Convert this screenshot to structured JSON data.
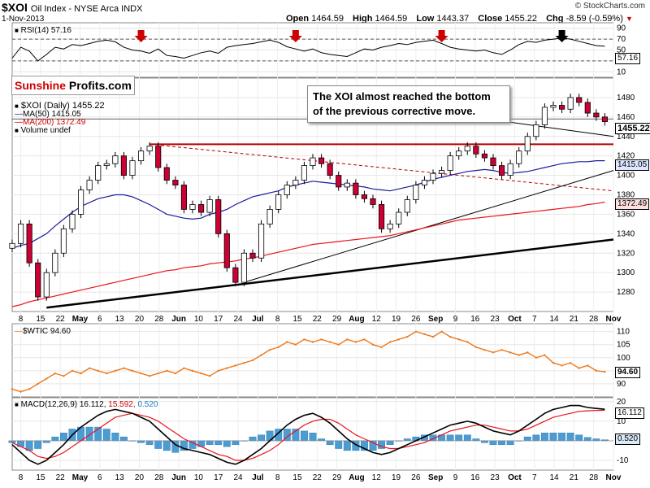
{
  "header": {
    "symbol": "$XOI",
    "name": "Oil Index - NYSE Arca INDX",
    "date": "1-Nov-2013",
    "brand": "© StockCharts.com"
  },
  "quote": {
    "open_label": "Open",
    "open": "1464.59",
    "high_label": "High",
    "high": "1464.59",
    "low_label": "Low",
    "low": "1443.37",
    "close_label": "Close",
    "close": "1455.22",
    "chg_label": "Chg",
    "chg": "-8.59 (-0.59%)"
  },
  "logo": {
    "part1": "Sunshine",
    "part2": "Profits.com"
  },
  "annotation": {
    "line1": "The XOI almost reached the bottom",
    "line2": "of the previous corrective move."
  },
  "legends": {
    "rsi": "RSI(14) 57.16",
    "price": "$XOI (Daily) 1455.22",
    "ma50": "MA(50) 1415.05",
    "ma200": "MA(200) 1372.49",
    "volume": "Volume undef",
    "wtic": "$WTIC 94.60",
    "macd_a": "MACD(12,26,9) 16.112,",
    "macd_b": "15.592,",
    "macd_c": "0.520"
  },
  "tags": {
    "rsi": "57.16",
    "price": "1455.22",
    "ma50": "1415.05",
    "ma200": "1372.49",
    "wtic": "94.60",
    "macd": "16.112",
    "hist": "0.520"
  },
  "colors": {
    "up": "#ffffff",
    "down": "#cc0033",
    "ma50": "#1c1c9e",
    "ma200": "#e8141e",
    "wtic": "#ee7a1e",
    "macd": "#000000",
    "signal": "#e8141e",
    "hist": "#4b9cd3",
    "resistance": "#b40000",
    "arrow_red": "#cc0000",
    "arrow_black": "#000000"
  },
  "x_axis": {
    "labels": [
      "8",
      "15",
      "22",
      "May",
      "6",
      "13",
      "20",
      "28",
      "Jun",
      "10",
      "17",
      "24",
      "Jul",
      "8",
      "15",
      "22",
      "29",
      "Aug",
      "12",
      "19",
      "26",
      "Sep",
      "9",
      "16",
      "23",
      "Oct",
      "7",
      "14",
      "21",
      "28",
      "Nov"
    ],
    "bold": [
      "May",
      "Jun",
      "Jul",
      "Aug",
      "Sep",
      "Oct",
      "Nov"
    ]
  },
  "chart_data": [
    {
      "type": "line",
      "title": "RSI(14)",
      "yticks": [
        10,
        30,
        50,
        70,
        90
      ],
      "ylim": [
        0,
        100
      ],
      "reference_lines": [
        30,
        70
      ],
      "x": [
        0,
        2,
        4,
        6,
        8,
        10,
        12,
        14,
        16,
        18,
        20,
        22,
        24,
        26,
        28,
        30,
        32,
        34,
        36,
        38,
        40,
        42,
        44,
        46,
        48,
        50,
        52,
        54,
        56,
        58,
        60,
        62,
        64,
        66,
        68,
        70,
        72,
        74,
        76,
        78,
        80,
        82,
        84,
        86,
        88,
        90,
        92,
        94,
        96,
        98,
        100,
        102,
        104,
        106,
        108,
        110,
        112,
        114,
        116,
        118,
        120,
        122,
        124,
        126,
        128,
        130,
        132,
        134,
        136,
        138
      ],
      "values": [
        35,
        55,
        48,
        30,
        42,
        55,
        52,
        60,
        58,
        62,
        66,
        68,
        65,
        55,
        50,
        48,
        44,
        52,
        40,
        38,
        35,
        40,
        45,
        48,
        44,
        55,
        58,
        60,
        62,
        65,
        68,
        64,
        56,
        52,
        48,
        52,
        45,
        42,
        40,
        38,
        45,
        52,
        50,
        55,
        58,
        62,
        60,
        64,
        66,
        68,
        62,
        55,
        52,
        50,
        48,
        50,
        45,
        42,
        50,
        60,
        66,
        64,
        68,
        70,
        72,
        70,
        66,
        62,
        58,
        57.16
      ],
      "arrows": [
        {
          "x": 30,
          "color": "red"
        },
        {
          "x": 66,
          "color": "red"
        },
        {
          "x": 100,
          "color": "red"
        },
        {
          "x": 128,
          "color": "black"
        }
      ]
    },
    {
      "type": "candlestick",
      "title": "$XOI (Daily)",
      "ylim": [
        1260,
        1500
      ],
      "yticks": [
        1280,
        1300,
        1320,
        1340,
        1360,
        1380,
        1400,
        1420,
        1440,
        1460,
        1480
      ],
      "x": [
        0,
        2,
        4,
        6,
        8,
        10,
        12,
        14,
        16,
        18,
        20,
        22,
        24,
        26,
        28,
        30,
        32,
        34,
        36,
        38,
        40,
        42,
        44,
        46,
        48,
        50,
        52,
        54,
        56,
        58,
        60,
        62,
        64,
        66,
        68,
        70,
        72,
        74,
        76,
        78,
        80,
        82,
        84,
        86,
        88,
        90,
        92,
        94,
        96,
        98,
        100,
        102,
        104,
        106,
        108,
        110,
        112,
        114,
        116,
        118,
        120,
        122,
        124,
        126,
        128,
        130,
        132,
        134,
        136,
        138
      ],
      "close": [
        1330,
        1350,
        1310,
        1275,
        1300,
        1320,
        1345,
        1360,
        1385,
        1395,
        1410,
        1412,
        1420,
        1400,
        1415,
        1425,
        1430,
        1408,
        1395,
        1390,
        1365,
        1370,
        1362,
        1375,
        1340,
        1305,
        1290,
        1320,
        1315,
        1350,
        1365,
        1380,
        1390,
        1395,
        1410,
        1418,
        1412,
        1400,
        1388,
        1392,
        1380,
        1376,
        1370,
        1345,
        1350,
        1362,
        1375,
        1390,
        1395,
        1402,
        1405,
        1420,
        1425,
        1430,
        1422,
        1418,
        1410,
        1400,
        1412,
        1425,
        1440,
        1452,
        1470,
        1472,
        1468,
        1480,
        1475,
        1464,
        1460,
        1455.22
      ],
      "ma50": [
        1325,
        1328,
        1330,
        1335,
        1340,
        1348,
        1355,
        1362,
        1368,
        1372,
        1376,
        1378,
        1380,
        1380,
        1378,
        1374,
        1370,
        1365,
        1360,
        1358,
        1356,
        1355,
        1356,
        1360,
        1362,
        1365,
        1370,
        1374,
        1378,
        1380,
        1382,
        1384,
        1388,
        1390,
        1392,
        1394,
        1393,
        1392,
        1391,
        1390,
        1389,
        1388,
        1386,
        1385,
        1384,
        1386,
        1388,
        1390,
        1393,
        1396,
        1398,
        1400,
        1402,
        1404,
        1405,
        1406,
        1405,
        1403,
        1402,
        1403,
        1404,
        1406,
        1408,
        1410,
        1412,
        1413,
        1414,
        1414,
        1415,
        1415.05
      ],
      "ma200": [
        1265,
        1267,
        1270,
        1272,
        1274,
        1276,
        1278,
        1280,
        1282,
        1284,
        1286,
        1288,
        1290,
        1292,
        1294,
        1296,
        1298,
        1300,
        1302,
        1303,
        1305,
        1306,
        1307,
        1309,
        1310,
        1311,
        1312,
        1314,
        1315,
        1317,
        1319,
        1321,
        1323,
        1325,
        1327,
        1329,
        1330,
        1331,
        1332,
        1333,
        1334,
        1335,
        1336,
        1337,
        1338,
        1340,
        1342,
        1344,
        1346,
        1348,
        1350,
        1352,
        1354,
        1355,
        1356,
        1357,
        1358,
        1359,
        1360,
        1361,
        1362,
        1363,
        1364,
        1365,
        1366,
        1367,
        1368,
        1370,
        1371,
        1372.49
      ],
      "trendlines": [
        {
          "name": "resistance-line",
          "x": [
            32,
            140
          ],
          "y": [
            1432,
            1432
          ]
        },
        {
          "name": "dashed-declining",
          "x": [
            32,
            140
          ],
          "y": [
            1432,
            1384
          ]
        },
        {
          "name": "steep-support",
          "x": [
            54,
            140
          ],
          "y": [
            1290,
            1405
          ]
        },
        {
          "name": "long-support",
          "x": [
            8,
            140
          ],
          "y": [
            1264,
            1334
          ]
        },
        {
          "name": "annotation-pointer",
          "x": [
            112,
            140
          ],
          "y": [
            1457,
            1440
          ]
        },
        {
          "name": "close-reference",
          "x": [
            0,
            140
          ],
          "y": [
            1458,
            1458
          ]
        }
      ]
    },
    {
      "type": "line",
      "title": "$WTIC",
      "ylim": [
        85,
        113
      ],
      "yticks": [
        90,
        95,
        100,
        105,
        110
      ],
      "x": [
        0,
        2,
        4,
        6,
        8,
        10,
        12,
        14,
        16,
        18,
        20,
        22,
        24,
        26,
        28,
        30,
        32,
        34,
        36,
        38,
        40,
        42,
        44,
        46,
        48,
        50,
        52,
        54,
        56,
        58,
        60,
        62,
        64,
        66,
        68,
        70,
        72,
        74,
        76,
        78,
        80,
        82,
        84,
        86,
        88,
        90,
        92,
        94,
        96,
        98,
        100,
        102,
        104,
        106,
        108,
        110,
        112,
        114,
        116,
        118,
        120,
        122,
        124,
        126,
        128,
        130,
        132,
        134,
        136,
        138
      ],
      "values": [
        88,
        87,
        88,
        90,
        92,
        94,
        93,
        95,
        94,
        96,
        95,
        94,
        95,
        96,
        95,
        94,
        93,
        94,
        95,
        94,
        96,
        95,
        94,
        93,
        95,
        96,
        97,
        98,
        99,
        101,
        103,
        104,
        106,
        105,
        107,
        106,
        107,
        106,
        105,
        107,
        106,
        107,
        105,
        104,
        106,
        107,
        108,
        110,
        109,
        108,
        110,
        108,
        107,
        106,
        104,
        103,
        102,
        103,
        102,
        101,
        102,
        100,
        101,
        98,
        97,
        98,
        96,
        97,
        95,
        94.6
      ]
    },
    {
      "type": "line",
      "title": "MACD(12,26,9)",
      "ylim": [
        -15,
        22
      ],
      "yticks": [
        -10,
        0,
        10,
        20
      ],
      "x": [
        0,
        2,
        4,
        6,
        8,
        10,
        12,
        14,
        16,
        18,
        20,
        22,
        24,
        26,
        28,
        30,
        32,
        34,
        36,
        38,
        40,
        42,
        44,
        46,
        48,
        50,
        52,
        54,
        56,
        58,
        60,
        62,
        64,
        66,
        68,
        70,
        72,
        74,
        76,
        78,
        80,
        82,
        84,
        86,
        88,
        90,
        92,
        94,
        96,
        98,
        100,
        102,
        104,
        106,
        108,
        110,
        112,
        114,
        116,
        118,
        120,
        122,
        124,
        126,
        128,
        130,
        132,
        134,
        136,
        138
      ],
      "series": [
        {
          "name": "MACD",
          "values": [
            -2,
            -6,
            -10,
            -12,
            -10,
            -6,
            -2,
            3,
            7,
            10,
            13,
            15,
            16,
            15,
            14,
            12,
            10,
            6,
            2,
            -2,
            -4,
            -5,
            -6,
            -7,
            -9,
            -11,
            -12,
            -10,
            -7,
            -4,
            0,
            4,
            8,
            11,
            13,
            14,
            12,
            9,
            5,
            1,
            -2,
            -4,
            -6,
            -7,
            -6,
            -4,
            -2,
            0,
            2,
            4,
            6,
            8,
            9,
            10,
            9,
            7,
            5,
            4,
            3,
            5,
            8,
            11,
            14,
            16,
            17,
            18,
            18,
            17,
            16.5,
            16.112
          ]
        },
        {
          "name": "Signal",
          "values": [
            -1,
            -3,
            -5,
            -8,
            -9,
            -8,
            -6,
            -3,
            0,
            3,
            6,
            9,
            12,
            13,
            14,
            13,
            12,
            10,
            7,
            4,
            1,
            -1,
            -3,
            -5,
            -7,
            -8,
            -10,
            -10,
            -9,
            -7,
            -5,
            -2,
            2,
            5,
            8,
            10,
            11,
            11,
            9,
            6,
            3,
            1,
            -1,
            -3,
            -4,
            -4,
            -3,
            -2,
            -1,
            1,
            3,
            5,
            6,
            7,
            8,
            8,
            7,
            6,
            5,
            5,
            6,
            8,
            10,
            12,
            13,
            14,
            15,
            15.3,
            15.5,
            15.592
          ]
        },
        {
          "name": "Histogram",
          "values": [
            -1,
            -3,
            -5,
            -4,
            -1,
            2,
            4,
            6,
            7,
            7,
            7,
            6,
            4,
            2,
            0,
            -1,
            -2,
            -4,
            -5,
            -6,
            -5,
            -4,
            -3,
            -2,
            -2,
            -3,
            -2,
            0,
            2,
            3,
            5,
            6,
            6,
            6,
            5,
            4,
            1,
            -2,
            -4,
            -5,
            -5,
            -5,
            -5,
            -4,
            -2,
            0,
            1,
            2,
            3,
            3,
            3,
            3,
            3,
            3,
            1,
            -1,
            -2,
            -2,
            -2,
            0,
            2,
            3,
            4,
            4,
            4,
            4,
            3,
            1.7,
            1,
            0.52
          ]
        }
      ]
    }
  ]
}
